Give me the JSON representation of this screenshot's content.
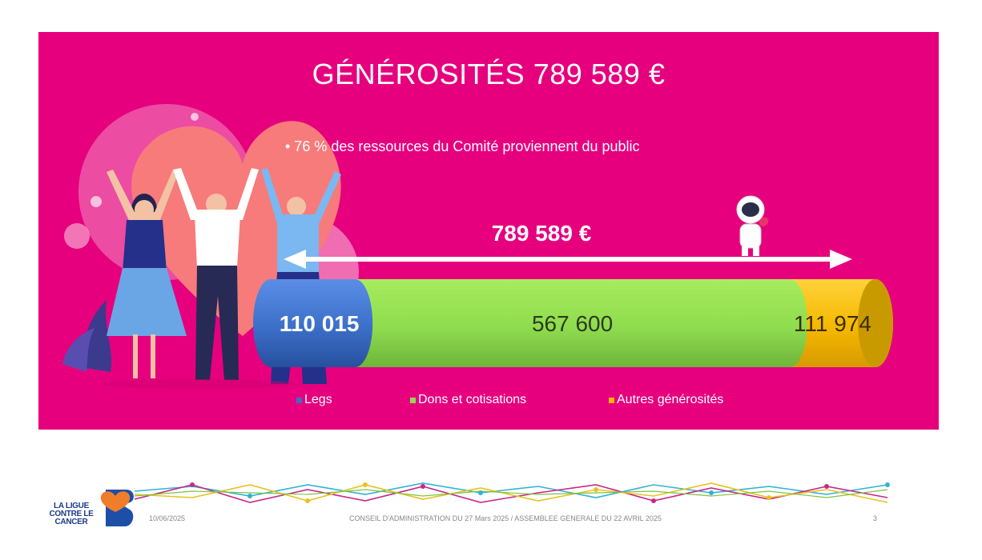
{
  "slide": {
    "title": "GÉNÉROSITÉS 789 589 €",
    "bullet": "• 76 % des ressources du Comité proviennent du public",
    "total_label": "789 589 €"
  },
  "colors": {
    "background": "#e6007e",
    "legs": "#3c6fc9",
    "dons": "#8fdc4f",
    "autres": "#f5b800"
  },
  "chart_data": {
    "type": "bar",
    "orientation": "horizontal-stacked",
    "title": "GÉNÉROSITÉS 789 589 €",
    "total": 789589,
    "series": [
      {
        "name": "Legs",
        "value": 110015,
        "label": "110 015",
        "color": "#3c6fc9"
      },
      {
        "name": "Dons et cotisations",
        "value": 567600,
        "label": "567 600",
        "color": "#8fdc4f"
      },
      {
        "name": "Autres générosités",
        "value": 111974,
        "label": "111 974",
        "color": "#f5b800"
      }
    ],
    "legend_position": "bottom"
  },
  "footer": {
    "logo_text": "LA LIGUE CONTRE LE CANCER",
    "date": "10/06/2025",
    "caption": "CONSEIL D'ADMINISTRATION DU 27 Mars 2025 / ASSEMBLEE GENERALE DU 22 AVRIL 2025",
    "page": "3"
  }
}
